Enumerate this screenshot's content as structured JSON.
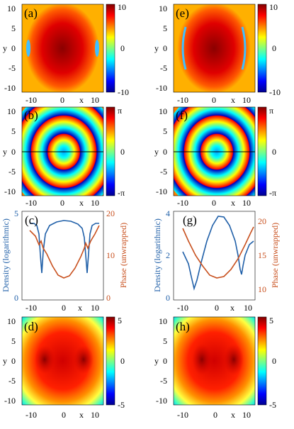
{
  "panels": {
    "a": {
      "label": "(a)",
      "ylabel": "y",
      "xlabel": "x",
      "xticks": [
        "-10",
        "0",
        "10"
      ],
      "yticks": [
        "10",
        "5",
        "0",
        "-5",
        "-10"
      ],
      "colorbar": [
        "10",
        "0",
        "-10"
      ]
    },
    "b": {
      "label": "(b)",
      "ylabel": "y",
      "xlabel": "x",
      "xticks": [
        "-10",
        "0",
        "10"
      ],
      "yticks": [
        "10",
        "5",
        "0",
        "-5",
        "-10"
      ],
      "colorbar": [
        "π",
        "0",
        "-π"
      ]
    },
    "c": {
      "label": "(c)",
      "ylabel_left": "Density (logarithmic)",
      "ylabel_right": "Phase (unwrapped)",
      "xlabel": "x",
      "xticks": [
        "-10",
        "0",
        "10"
      ],
      "yticks_left": [
        "5",
        "0"
      ],
      "yticks_right": [
        "20",
        "10",
        "0"
      ]
    },
    "d": {
      "label": "(d)",
      "ylabel": "y",
      "xlabel": "x",
      "xticks": [
        "-10",
        "0",
        "10"
      ],
      "yticks": [
        "10",
        "5",
        "0",
        "-5",
        "-10"
      ],
      "colorbar": [
        "5",
        "0",
        "-5"
      ]
    },
    "e": {
      "label": "(e)",
      "ylabel": "y",
      "xlabel": "x",
      "xticks": [
        "-10",
        "0",
        "10"
      ],
      "yticks": [
        "10",
        "5",
        "0",
        "-5",
        "-10"
      ],
      "colorbar": [
        "10",
        "0",
        "-10"
      ]
    },
    "f": {
      "label": "(f)",
      "ylabel": "y",
      "xlabel": "x",
      "xticks": [
        "-10",
        "0",
        "10"
      ],
      "yticks": [
        "10",
        "5",
        "0",
        "-5",
        "-10"
      ],
      "colorbar": [
        "π",
        "0",
        "-π"
      ]
    },
    "g": {
      "label": "(g)",
      "ylabel_left": "Density (logarithmic)",
      "ylabel_right": "Phase (unwrapped)",
      "xlabel": "x",
      "xticks": [
        "-10",
        "0",
        "10"
      ],
      "yticks_left": [
        "4",
        "2",
        "0"
      ],
      "yticks_right": [
        "20",
        "15",
        "10"
      ]
    },
    "h": {
      "label": "(h)",
      "ylabel": "y",
      "xlabel": "x",
      "xticks": [
        "-10",
        "0",
        "10"
      ],
      "yticks": [
        "10",
        "5",
        "0",
        "-5",
        "-10"
      ],
      "colorbar": [
        "5",
        "0",
        "-5"
      ]
    }
  },
  "colors": {
    "density_line": "#1f5fa8",
    "phase_line": "#c8501e"
  }
}
